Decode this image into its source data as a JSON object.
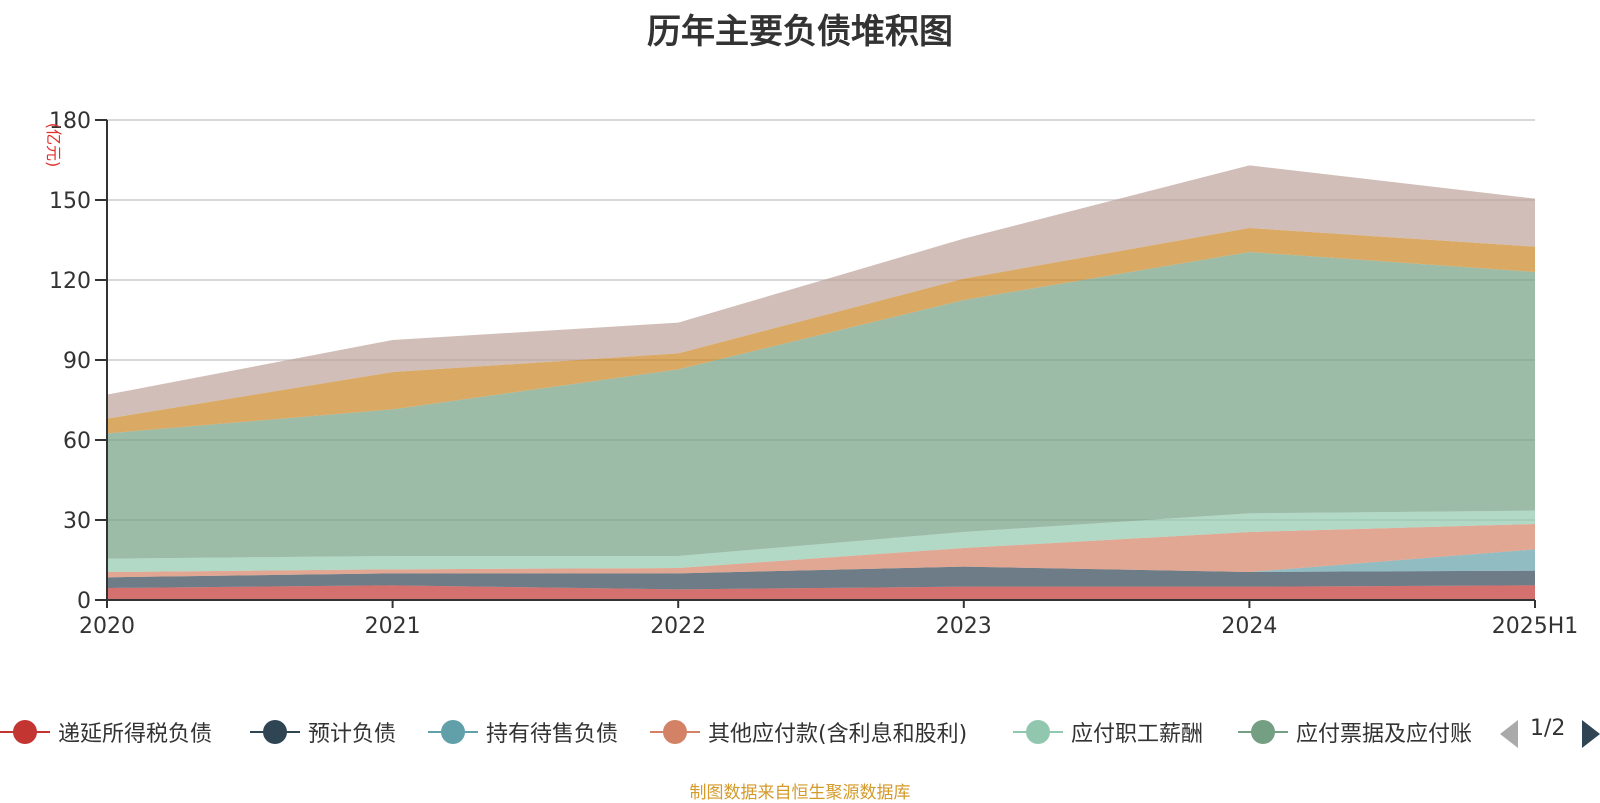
{
  "chart_data": {
    "type": "area",
    "stacked": true,
    "title": "历年主要负债堆积图",
    "ylabel": "(亿元)",
    "xlabel": "",
    "ylim": [
      0,
      180
    ],
    "yticks": [
      0,
      30,
      60,
      90,
      120,
      150,
      180
    ],
    "categories": [
      "2020",
      "2021",
      "2022",
      "2023",
      "2024",
      "2025H1"
    ],
    "grid": true,
    "legend_position": "bottom",
    "series": [
      {
        "name": "递延所得税负债",
        "color": "#c23531",
        "values": [
          4.5,
          5.5,
          4,
          5,
          5,
          5.5
        ]
      },
      {
        "name": "预计负债",
        "color": "#2f4554",
        "values": [
          4,
          4.5,
          6,
          7.5,
          5.5,
          5.5
        ]
      },
      {
        "name": "持有待售负债",
        "color": "#61a0a8",
        "values": [
          0,
          0,
          0,
          0,
          0,
          8
        ]
      },
      {
        "name": "其他应付款(含利息和股利)",
        "color": "#d48265",
        "values": [
          2,
          1.5,
          2,
          7,
          15,
          9.5
        ]
      },
      {
        "name": "应付职工薪酬",
        "color": "#91c7ae",
        "values": [
          5,
          5,
          4.5,
          6,
          7,
          5
        ]
      },
      {
        "name": "应付票据及应付账款",
        "color": "#749f83",
        "values": [
          47,
          55,
          70,
          87,
          98,
          89.5
        ]
      },
      {
        "name": "",
        "color": "#ca8622",
        "values": [
          5.5,
          14,
          6,
          8,
          9,
          9.5
        ]
      },
      {
        "name": "",
        "color": "#bda29a",
        "values": [
          9,
          12,
          11.5,
          15,
          23.5,
          18
        ]
      }
    ]
  },
  "legend": {
    "visible_items": [
      "递延所得税负债",
      "预计负债",
      "持有待售负债",
      "其他应付款(含利息和股利)",
      "应付职工薪酬",
      "应付票据及应付账"
    ],
    "page": "1/2"
  },
  "source_note": "制图数据来自恒生聚源数据库"
}
